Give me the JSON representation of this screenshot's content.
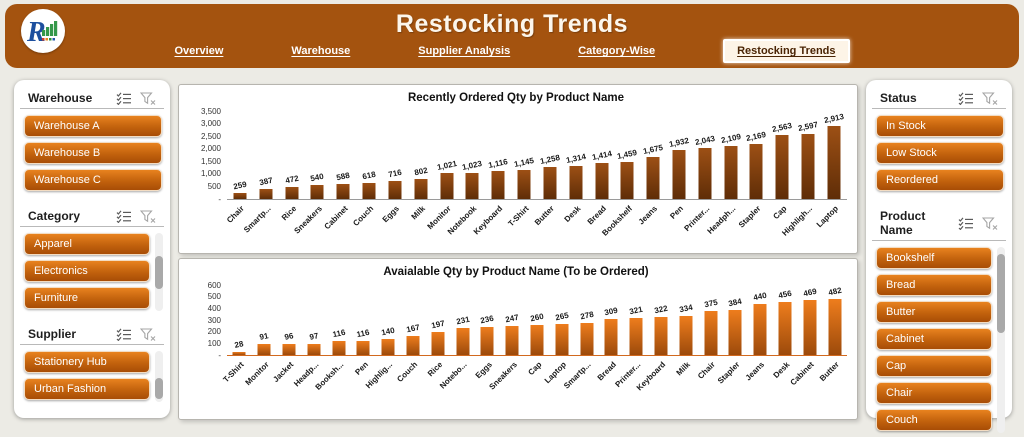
{
  "header": {
    "title": "Restocking Trends",
    "nav": [
      {
        "label": "Overview",
        "active": false
      },
      {
        "label": "Warehouse",
        "active": false
      },
      {
        "label": "Supplier Analysis",
        "active": false
      },
      {
        "label": "Category-Wise",
        "active": false
      },
      {
        "label": "Restocking Trends",
        "active": true
      }
    ]
  },
  "left_sidebar": {
    "sections": [
      {
        "title": "Warehouse",
        "items": [
          "Warehouse A",
          "Warehouse B",
          "Warehouse C"
        ],
        "scrollbar": {
          "visible": false,
          "thumb": "top"
        }
      },
      {
        "title": "Category",
        "items": [
          "Apparel",
          "Electronics",
          "Furniture"
        ],
        "scrollbar": {
          "visible": true,
          "thumb": "middle"
        }
      },
      {
        "title": "Supplier",
        "items": [
          "Stationery Hub",
          "Urban Fashion"
        ],
        "scrollbar": {
          "visible": true,
          "thumb": "low"
        }
      }
    ]
  },
  "right_sidebar": {
    "sections": [
      {
        "title": "Status",
        "items": [
          "In Stock",
          "Low Stock",
          "Reordered"
        ],
        "scrollbar": {
          "visible": false,
          "thumb": "top"
        }
      },
      {
        "title": "Product Name",
        "items": [
          "Bookshelf",
          "Bread",
          "Butter",
          "Cabinet",
          "Cap",
          "Chair",
          "Couch"
        ],
        "scrollbar": {
          "visible": true,
          "thumb": "top"
        }
      }
    ]
  },
  "icons": [
    "multi-select-icon",
    "clear-filter-icon",
    "logo-r-barchart"
  ],
  "chart_data": [
    {
      "type": "bar",
      "title": "Recently Ordered Qty by Product Name",
      "categories": [
        "Chair",
        "Smartp...",
        "Rice",
        "Sneakers",
        "Cabinet",
        "Couch",
        "Eggs",
        "Milk",
        "Monitor",
        "Notebook",
        "Keyboard",
        "T-Shirt",
        "Butter",
        "Desk",
        "Bread",
        "Bookshelf",
        "Jeans",
        "Pen",
        "Printer...",
        "Headph...",
        "Stapler",
        "Cap",
        "Highligh...",
        "Laptop"
      ],
      "values": [
        259,
        387,
        472,
        540,
        588,
        618,
        716,
        802,
        1021,
        1023,
        1116,
        1145,
        1258,
        1314,
        1414,
        1459,
        1675,
        1932,
        2043,
        2109,
        2169,
        2563,
        2597,
        2913
      ],
      "labels": [
        "259",
        "387",
        "472",
        "540",
        "588",
        "618",
        "716",
        "802",
        "1,021",
        "1,023",
        "1,116",
        "1,145",
        "1,258",
        "1,314",
        "1,414",
        "1,459",
        "1,675",
        "1,932",
        "2,043",
        "2,109",
        "2,169",
        "2,563",
        "2,597",
        "2,913"
      ],
      "xlabel": "",
      "ylabel": "",
      "ylim": [
        0,
        3500
      ],
      "yticks": [
        "3,500",
        "3,000",
        "2,500",
        "2,000",
        "1,500",
        "1,000",
        "500",
        "-"
      ],
      "grid": false,
      "legend": "none",
      "bar_color_top": "#9d5015",
      "bar_color_bottom": "#5f2d07",
      "baseline_color": "#9a9a9a"
    },
    {
      "type": "bar",
      "title": "Avaialable Qty by Product Name (To be Ordered)",
      "categories": [
        "T-Shirt",
        "Monitor",
        "Jacket",
        "Headp...",
        "Booksh...",
        "Pen",
        "Highlig...",
        "Couch",
        "Rice",
        "Notebo...",
        "Eggs",
        "Sneakers",
        "Cap",
        "Laptop",
        "Smartp...",
        "Bread",
        "Printer...",
        "Keyboard",
        "Milk",
        "Chair",
        "Stapler",
        "Jeans",
        "Desk",
        "Cabinet",
        "Butter"
      ],
      "values": [
        28,
        91,
        96,
        97,
        116,
        116,
        140,
        167,
        197,
        231,
        236,
        247,
        260,
        265,
        278,
        309,
        321,
        322,
        334,
        375,
        384,
        440,
        456,
        469,
        482
      ],
      "labels": [
        "28",
        "91",
        "96",
        "97",
        "116",
        "116",
        "140",
        "167",
        "197",
        "231",
        "236",
        "247",
        "260",
        "265",
        "278",
        "309",
        "321",
        "322",
        "334",
        "375",
        "384",
        "440",
        "456",
        "469",
        "482"
      ],
      "xlabel": "",
      "ylabel": "",
      "ylim": [
        0,
        600
      ],
      "yticks": [
        "600",
        "500",
        "400",
        "300",
        "200",
        "100",
        "-"
      ],
      "grid": false,
      "legend": "none",
      "bar_color_top": "#ee7d1d",
      "bar_color_bottom": "#9c4a0b",
      "baseline_color": "#d2691e"
    }
  ],
  "colors": {
    "header_bg": "#a4530f",
    "page_bg": "#ecebe5",
    "panel_bg": "#ffffff",
    "slicer_button_top": "#e8821f",
    "slicer_button_bottom": "#a84d06",
    "active_tab_bg": "#fdf4e7",
    "active_tab_text": "#4a2404"
  }
}
